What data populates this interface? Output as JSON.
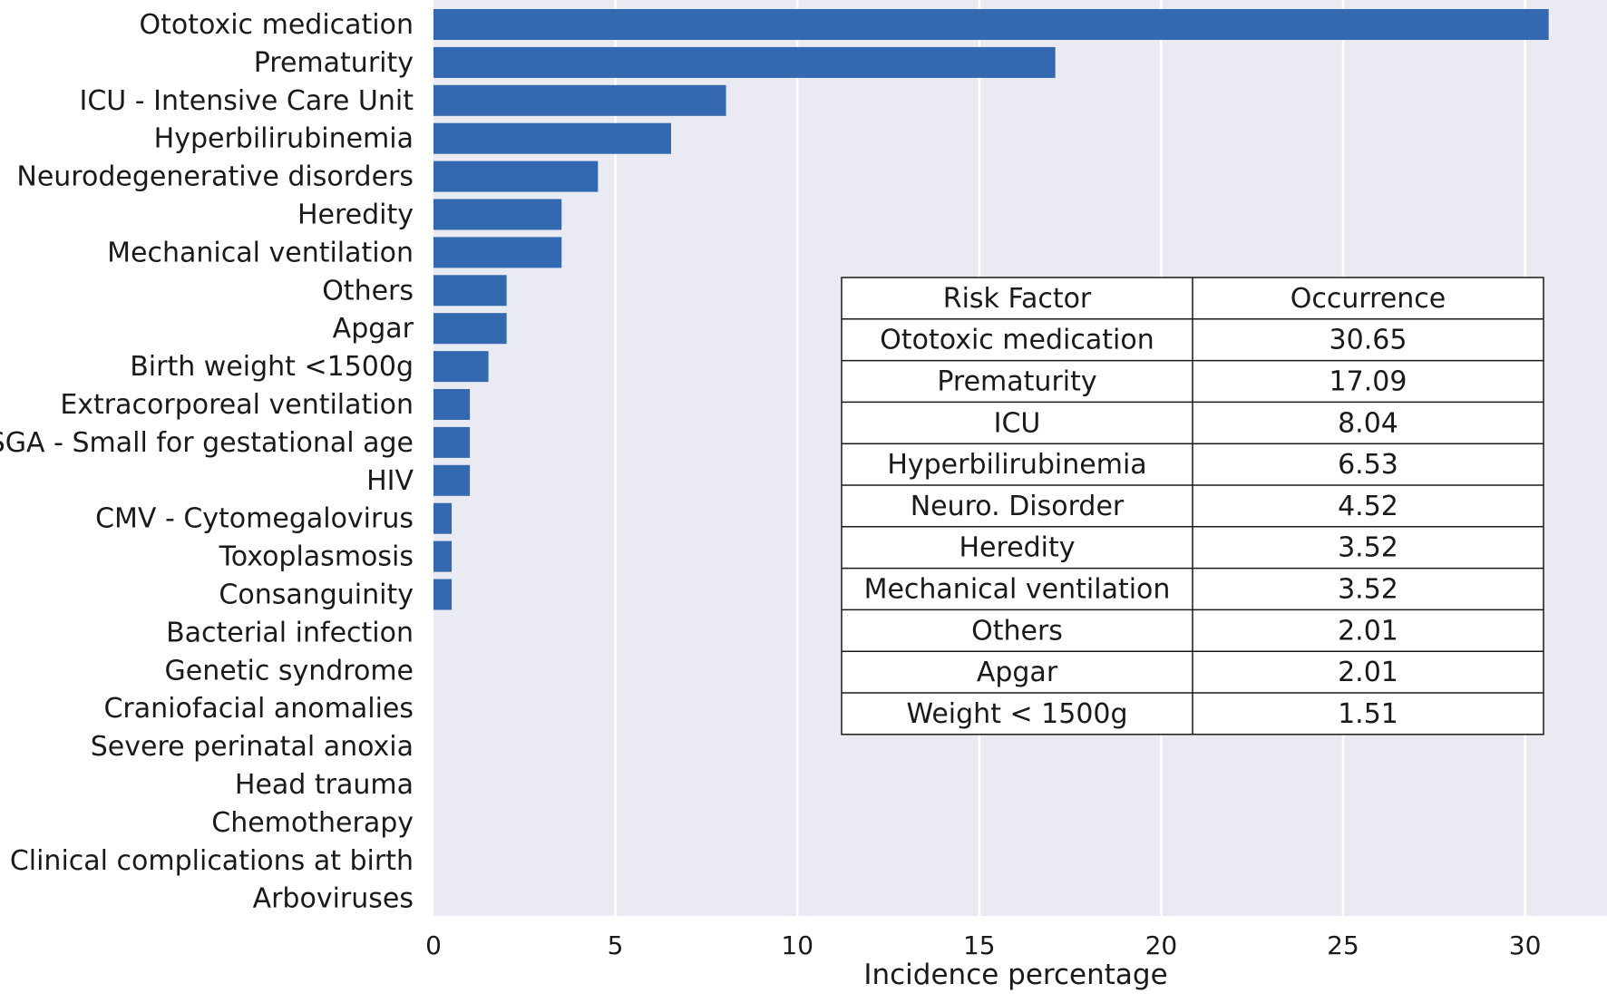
{
  "chart_data": {
    "type": "bar",
    "orientation": "horizontal",
    "categories": [
      "Ototoxic medication",
      "Prematurity",
      "ICU - Intensive Care Unit",
      "Hyperbilirubinemia",
      "Neurodegenerative disorders",
      "Heredity",
      "Mechanical ventilation",
      "Others",
      "Apgar",
      "Birth weight <1500g",
      "Extracorporeal ventilation",
      "SGA - Small for gestational age",
      "HIV",
      "CMV - Cytomegalovirus",
      "Toxoplasmosis",
      "Consanguinity",
      "Bacterial infection",
      "Genetic syndrome",
      "Craniofacial anomalies",
      "Severe perinatal anoxia",
      "Head trauma",
      "Chemotherapy",
      "Clinical complications at birth",
      "Arboviruses"
    ],
    "values": [
      30.65,
      17.09,
      8.04,
      6.53,
      4.52,
      3.52,
      3.52,
      2.01,
      2.01,
      1.51,
      1.0,
      1.0,
      1.0,
      0.5,
      0.5,
      0.5,
      0,
      0,
      0,
      0,
      0,
      0,
      0,
      0
    ],
    "xlabel": "Incidence percentage",
    "ylabel": "",
    "xlim": [
      0,
      32
    ],
    "xticks": [
      "0",
      "5",
      "10",
      "15",
      "20",
      "25",
      "30"
    ],
    "grid": true,
    "bar_color": "#3369b0",
    "background_color": "#eaeaf2",
    "table": {
      "headers": [
        "Risk Factor",
        "Occurrence"
      ],
      "rows": [
        [
          "Ototoxic medication",
          "30.65"
        ],
        [
          "Prematurity",
          "17.09"
        ],
        [
          "ICU",
          "8.04"
        ],
        [
          "Hyperbilirubinemia",
          "6.53"
        ],
        [
          "Neuro. Disorder",
          "4.52"
        ],
        [
          "Heredity",
          "3.52"
        ],
        [
          "Mechanical ventilation",
          "3.52"
        ],
        [
          "Others",
          "2.01"
        ],
        [
          "Apgar",
          "2.01"
        ],
        [
          "Weight < 1500g",
          "1.51"
        ]
      ]
    }
  }
}
